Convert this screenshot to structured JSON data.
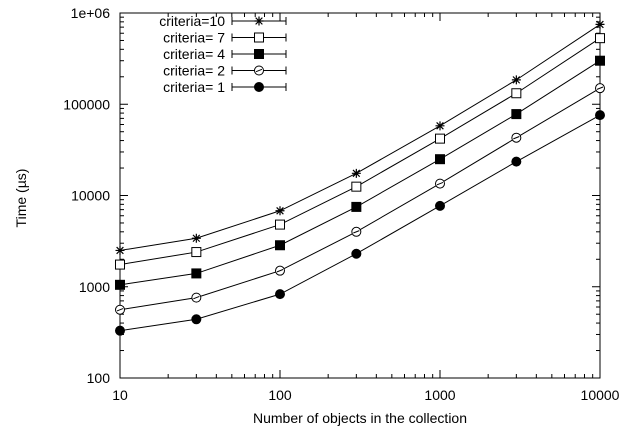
{
  "chart_data": {
    "type": "line",
    "title": "",
    "xlabel": "Number of objects in the collection",
    "ylabel": "Time (µs)",
    "x_scale": "log",
    "y_scale": "log",
    "xlim": [
      10,
      10000
    ],
    "ylim": [
      100,
      1000000
    ],
    "x_ticks": [
      10,
      100,
      1000,
      10000
    ],
    "x_tick_labels": [
      "10",
      "100",
      "1000",
      "10000"
    ],
    "y_ticks": [
      100,
      1000,
      10000,
      100000,
      1000000
    ],
    "y_tick_labels": [
      "100",
      "1000",
      "10000",
      "100000",
      "1e+06"
    ],
    "grid": false,
    "legend_position": "top-left",
    "x": [
      10,
      30,
      100,
      300,
      1000,
      3000,
      10000
    ],
    "series": [
      {
        "name": "criteria=10",
        "marker": "star",
        "values": [
          2500,
          3400,
          6800,
          17500,
          58000,
          185000,
          750000
        ]
      },
      {
        "name": "criteria= 7",
        "marker": "open-square",
        "values": [
          1750,
          2400,
          4800,
          12500,
          42000,
          132000,
          530000
        ]
      },
      {
        "name": "criteria= 4",
        "marker": "filled-square",
        "values": [
          1050,
          1400,
          2850,
          7500,
          25000,
          78000,
          300000
        ]
      },
      {
        "name": "criteria= 2",
        "marker": "circle-dash",
        "values": [
          560,
          760,
          1500,
          4000,
          13500,
          43000,
          150000
        ]
      },
      {
        "name": "criteria= 1",
        "marker": "filled-circle",
        "values": [
          330,
          440,
          830,
          2300,
          7700,
          23500,
          76000
        ]
      }
    ]
  }
}
